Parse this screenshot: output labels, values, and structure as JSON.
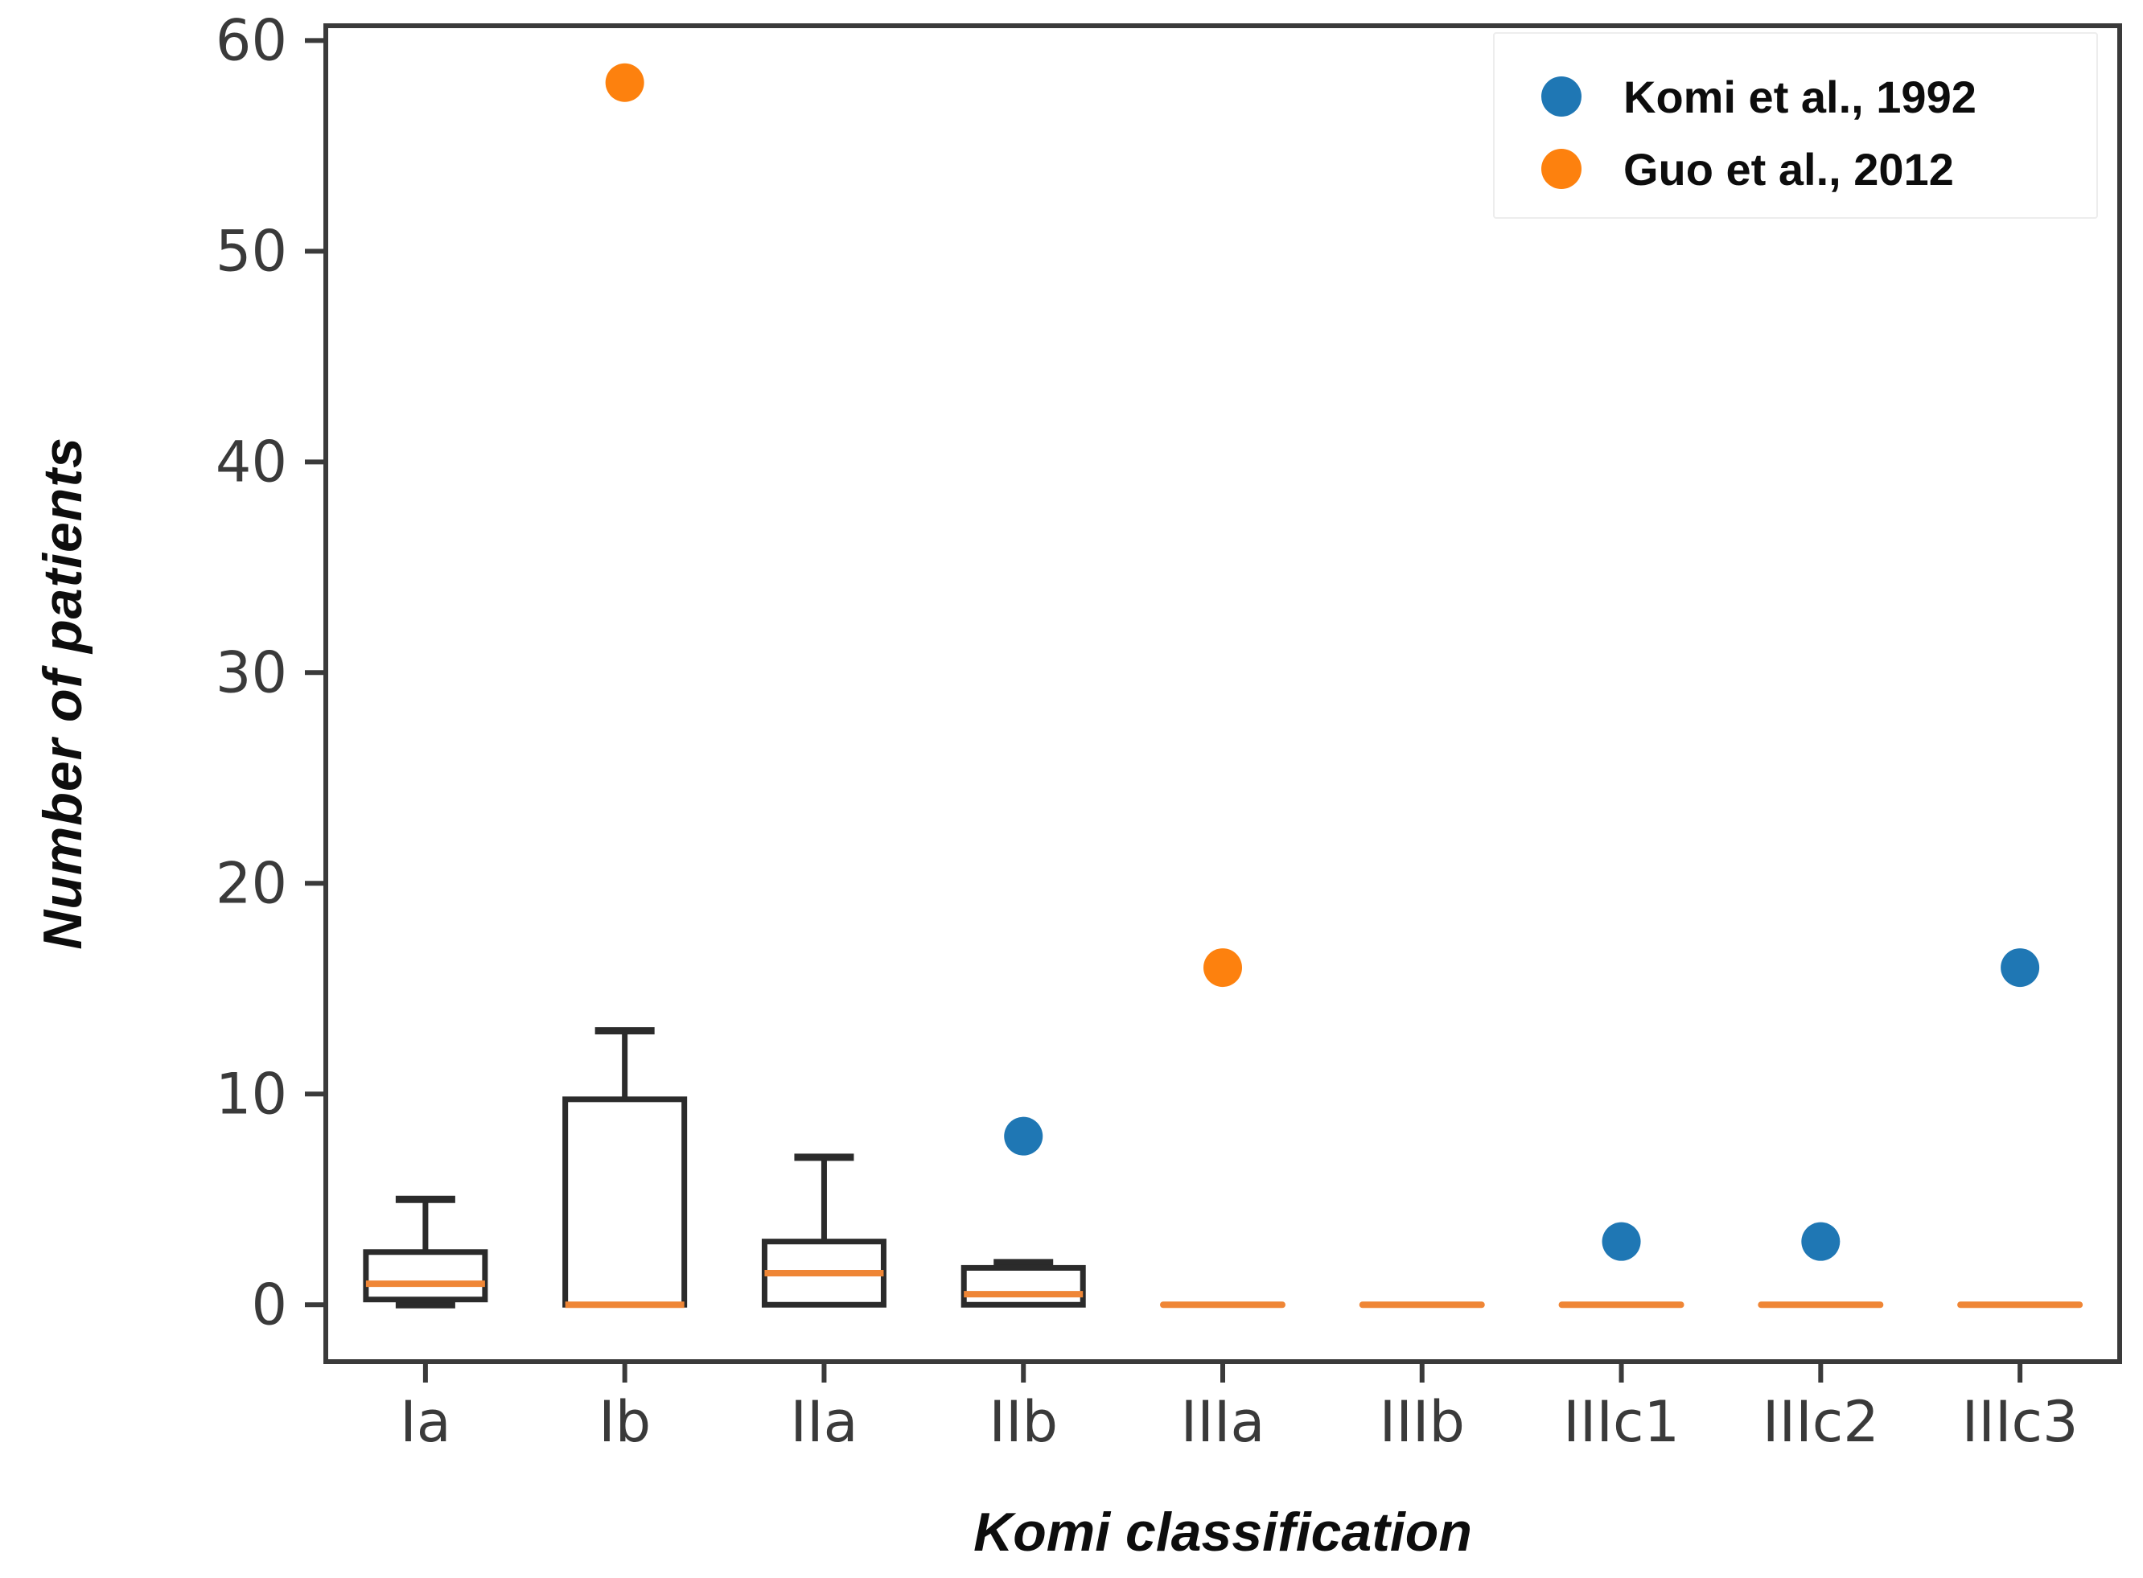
{
  "chart_data": {
    "type": "boxplot",
    "title": "",
    "xlabel": "Komi classification",
    "ylabel": "Number of patients",
    "categories": [
      "Ia",
      "Ib",
      "IIa",
      "IIb",
      "IIIa",
      "IIIb",
      "IIIc1",
      "IIIc2",
      "IIIc3"
    ],
    "yticks": [
      0,
      10,
      20,
      30,
      40,
      50,
      60
    ],
    "ylim": [
      -2.7,
      60.7
    ],
    "grid": false,
    "legend_position": "upper right",
    "boxes": [
      {
        "category": "Ia",
        "whislo": 0,
        "q1": 0.25,
        "med": 1,
        "q3": 2.5,
        "whishi": 5
      },
      {
        "category": "Ib",
        "whislo": 0,
        "q1": 0,
        "med": 0,
        "q3": 9.75,
        "whishi": 13
      },
      {
        "category": "IIa",
        "whislo": 0,
        "q1": 0,
        "med": 1.5,
        "q3": 3,
        "whishi": 7
      },
      {
        "category": "IIb",
        "whislo": 0,
        "q1": 0,
        "med": 0.5,
        "q3": 1.75,
        "whishi": 2
      },
      {
        "category": "IIIa",
        "whislo": 0,
        "q1": 0,
        "med": 0,
        "q3": 0,
        "whishi": 0
      },
      {
        "category": "IIIb",
        "whislo": 0,
        "q1": 0,
        "med": 0,
        "q3": 0,
        "whishi": 0
      },
      {
        "category": "IIIc1",
        "whislo": 0,
        "q1": 0,
        "med": 0,
        "q3": 0,
        "whishi": 0
      },
      {
        "category": "IIIc2",
        "whislo": 0,
        "q1": 0,
        "med": 0,
        "q3": 0,
        "whishi": 0
      },
      {
        "category": "IIIc3",
        "whislo": 0,
        "q1": 0,
        "med": 0,
        "q3": 0,
        "whishi": 0
      }
    ],
    "series": [
      {
        "name": "Komi et al., 1992",
        "color": "#1f77b4",
        "points": [
          {
            "category": "IIb",
            "value": 8
          },
          {
            "category": "IIIc1",
            "value": 3
          },
          {
            "category": "IIIc2",
            "value": 3
          },
          {
            "category": "IIIc3",
            "value": 16
          }
        ]
      },
      {
        "name": "Guo et al., 2012",
        "color": "#fd810e",
        "points": [
          {
            "category": "Ib",
            "value": 58
          },
          {
            "category": "IIIa",
            "value": 16
          }
        ]
      }
    ],
    "colors": {
      "box_stroke": "#2b2b2b",
      "median": "#ef8636",
      "spine": "#3a3a3a",
      "tick_label": "#3a3a3a"
    }
  },
  "legend": {
    "items": [
      {
        "label": "Komi et al., 1992",
        "color": "#1f77b4"
      },
      {
        "label": "Guo et al., 2012",
        "color": "#fd810e"
      }
    ],
    "border_color": "#ededed"
  }
}
